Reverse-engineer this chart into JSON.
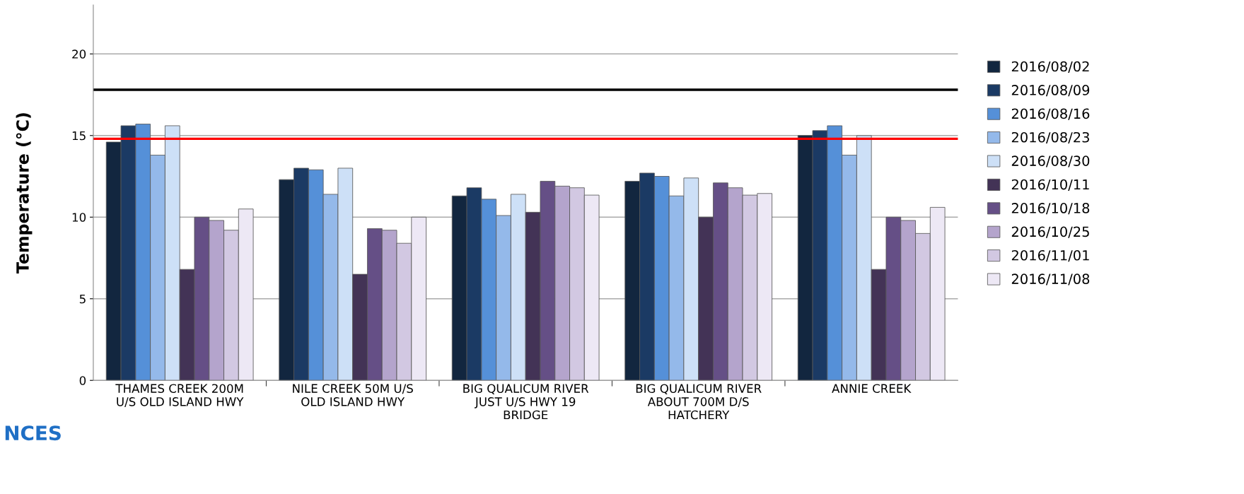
{
  "chart_data": {
    "type": "bar",
    "ylabel": "Temperature (°C)",
    "categories": [
      "THAMES CREEK 200M\nU/S OLD ISLAND HWY",
      "NILE CREEK 50M U/S\nOLD ISLAND HWY",
      "BIG QUALICUM RIVER\nJUST U/S HWY 19\nBRIDGE",
      "BIG QUALICUM RIVER\nABOUT 700M D/S\nHATCHERY",
      "ANNIE CREEK"
    ],
    "series": [
      {
        "name": "2016/08/02",
        "color": "#12263f",
        "values": [
          14.6,
          12.3,
          11.3,
          12.2,
          15.0
        ]
      },
      {
        "name": "2016/08/09",
        "color": "#1b3a64",
        "values": [
          15.6,
          13.0,
          11.8,
          12.7,
          15.3
        ]
      },
      {
        "name": "2016/08/16",
        "color": "#5590d8",
        "values": [
          15.7,
          12.9,
          11.1,
          12.5,
          15.6
        ]
      },
      {
        "name": "2016/08/23",
        "color": "#94b9ea",
        "values": [
          13.8,
          11.4,
          10.1,
          11.3,
          13.8
        ]
      },
      {
        "name": "2016/08/30",
        "color": "#cde0f7",
        "values": [
          15.6,
          13.0,
          11.4,
          12.4,
          15.0
        ]
      },
      {
        "name": "2016/10/11",
        "color": "#433356",
        "values": [
          6.8,
          6.5,
          10.3,
          10.0,
          6.8
        ]
      },
      {
        "name": "2016/10/18",
        "color": "#654f86",
        "values": [
          10.0,
          9.3,
          12.2,
          12.1,
          10.0
        ]
      },
      {
        "name": "2016/10/25",
        "color": "#b4a4cc",
        "values": [
          9.8,
          9.2,
          11.9,
          11.8,
          9.8
        ]
      },
      {
        "name": "2016/11/01",
        "color": "#d2c8e2",
        "values": [
          9.2,
          8.4,
          11.8,
          11.35,
          9.0
        ]
      },
      {
        "name": "2016/11/08",
        "color": "#ede8f5",
        "values": [
          10.5,
          10.0,
          11.35,
          11.45,
          10.6
        ]
      }
    ],
    "ylim": [
      0,
      23
    ],
    "yticks": [
      0,
      5,
      10,
      15,
      20
    ],
    "ref_lines": [
      {
        "axis": "y",
        "value": 17.8,
        "color": "#000000"
      },
      {
        "axis": "y",
        "value": 14.8,
        "color": "#ff0000"
      }
    ],
    "annotations": [
      "NCES"
    ],
    "grid": "y",
    "legend": "right"
  }
}
